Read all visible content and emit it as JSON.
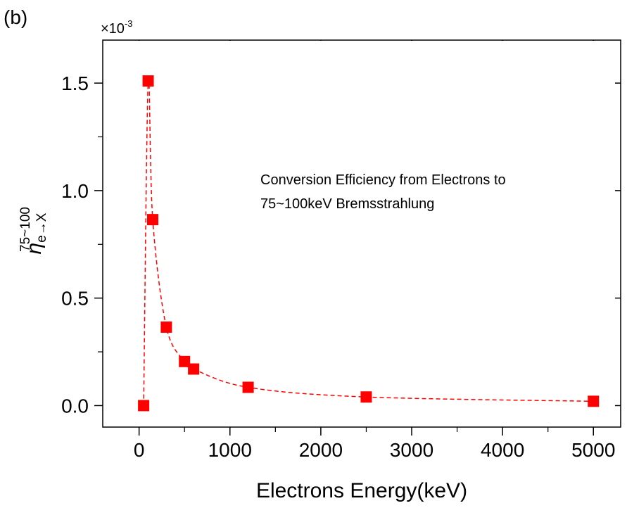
{
  "panel_label": "(b)",
  "chart_data": {
    "type": "line",
    "title": "",
    "xlabel": "Electrons Energy(keV)",
    "ylabel": {
      "symbol": "η",
      "subscript": "e→X",
      "superscript": "75~100"
    },
    "y_multiplier": {
      "base": "×10",
      "exponent": "-3"
    },
    "xlim": [
      -400,
      5300
    ],
    "ylim": [
      -0.1,
      1.7
    ],
    "x_ticks": [
      0,
      1000,
      2000,
      3000,
      4000,
      5000
    ],
    "x_tick_labels": [
      "0",
      "1000",
      "2000",
      "3000",
      "4000",
      "5000"
    ],
    "y_ticks": [
      0.0,
      0.5,
      1.0,
      1.5
    ],
    "y_tick_labels": [
      "0.0",
      "0.5",
      "1.0",
      "1.5"
    ],
    "grid": false,
    "annotation": [
      "Conversion Efficiency from Electrons to",
      "75~100keV Bremsstrahlung"
    ],
    "series": [
      {
        "marker": "square",
        "line_style": "dashed",
        "color": "#ff0000",
        "x": [
          50,
          100,
          150,
          300,
          500,
          600,
          1200,
          2500,
          5000
        ],
        "y": [
          0.0,
          1.51,
          0.865,
          0.365,
          0.205,
          0.17,
          0.085,
          0.04,
          0.02
        ]
      }
    ]
  }
}
